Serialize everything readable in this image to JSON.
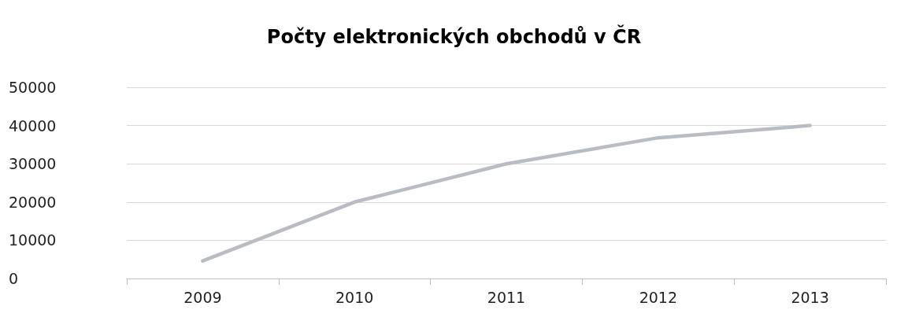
{
  "chart_data": {
    "type": "line",
    "title": "Počty elektronických obchodů v ČR",
    "categories": [
      "2009",
      "2010",
      "2011",
      "2012",
      "2013"
    ],
    "series": [
      {
        "color": "#b9bcc3",
        "values": [
          4600,
          20000,
          30000,
          36800,
          40000
        ]
      }
    ],
    "ylim": [
      0,
      50000
    ],
    "yticks": [
      0,
      10000,
      20000,
      30000,
      40000,
      50000
    ],
    "grid": "y",
    "marker": "none",
    "line_style": "solid"
  }
}
